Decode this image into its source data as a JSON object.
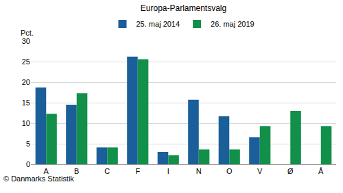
{
  "chart_data": {
    "type": "bar",
    "title": "Europa-Parlamentsvalg",
    "y_label": "Pct.",
    "source": "© Danmarks Statistik",
    "categories": [
      "A",
      "B",
      "C",
      "F",
      "I",
      "N",
      "O",
      "V",
      "Ø",
      "Å"
    ],
    "series": [
      {
        "name": "25. maj 2014",
        "color": "#1a5f9a",
        "values": [
          18.7,
          14.5,
          4.1,
          26.2,
          3.0,
          15.7,
          11.7,
          6.6,
          null,
          null
        ]
      },
      {
        "name": "26. maj 2019",
        "color": "#12904a",
        "values": [
          12.3,
          17.3,
          4.1,
          25.6,
          2.2,
          3.6,
          3.6,
          9.3,
          13.0,
          9.3
        ]
      }
    ],
    "ylim": [
      0,
      30
    ],
    "yticks": [
      0,
      5,
      10,
      15,
      20,
      25,
      30
    ],
    "grid": true,
    "legend": "top"
  }
}
